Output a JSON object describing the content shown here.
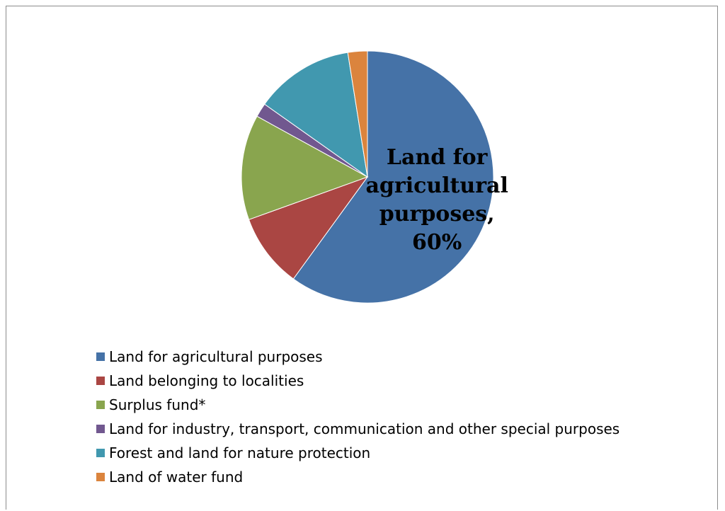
{
  "chart_data": {
    "type": "pie",
    "title": "",
    "slices": [
      {
        "label": "Land for agricultural purposes",
        "value": 60,
        "color": "#4572A7"
      },
      {
        "label": "Land belonging to localities",
        "value": 9.5,
        "color": "#AA4643"
      },
      {
        "label": "Surplus fund*",
        "value": 13.5,
        "color": "#89A54E"
      },
      {
        "label": "Land for industry, transport, communication and other special purposes",
        "value": 1.8,
        "color": "#71588F"
      },
      {
        "label": "Forest and land for nature protection",
        "value": 12.7,
        "color": "#4198AF"
      },
      {
        "label": "Land of water fund",
        "value": 2.5,
        "color": "#DB843D"
      }
    ],
    "data_labels": [
      {
        "slice": 0,
        "lines": [
          "Land for",
          "agricultural",
          "purposes,",
          "60%"
        ]
      }
    ],
    "legend_position": "bottom",
    "legend_entries": [
      "Land for agricultural purposes",
      "Land belonging to localities",
      "Surplus fund*",
      "Land for industry, transport, communication and other special purposes",
      "Forest and land for nature protection",
      "Land of water fund"
    ]
  }
}
